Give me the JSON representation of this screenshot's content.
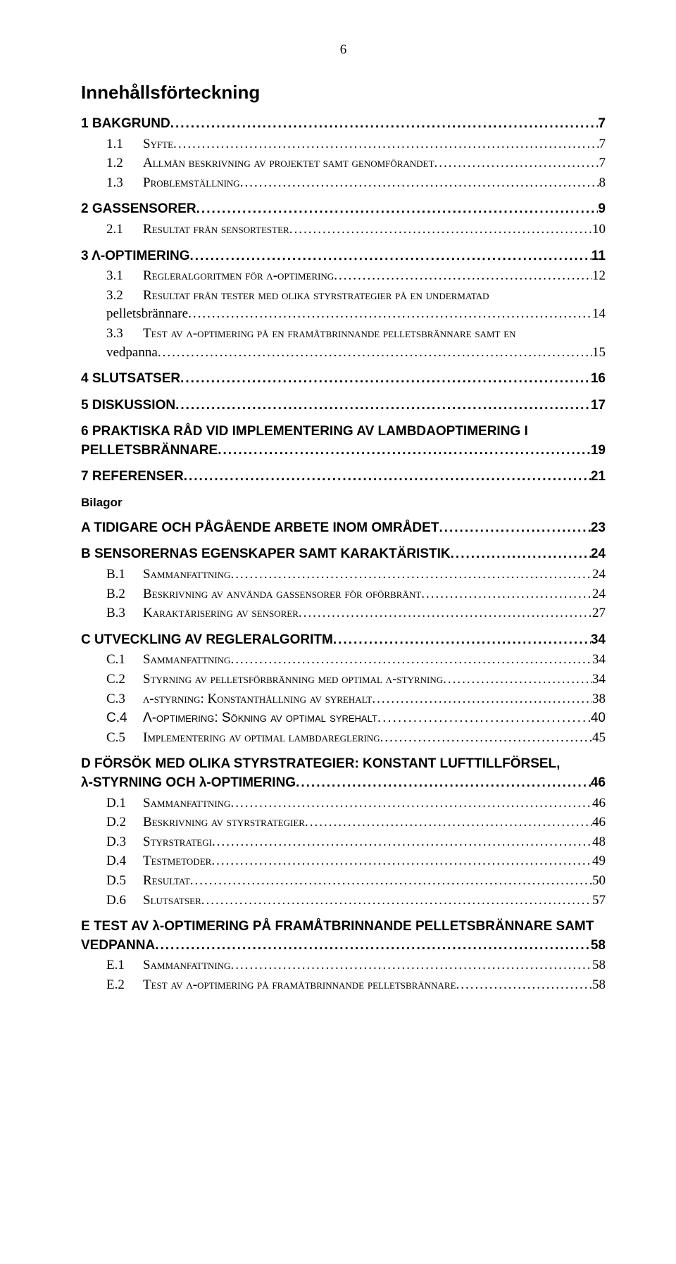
{
  "page_number": "6",
  "title": "Innehållsförteckning",
  "bilagor_label": "Bilagor",
  "items": [
    {
      "level": "h1",
      "label": "1    BAKGRUND",
      "page": "7"
    },
    {
      "level": "h2",
      "num": "1.1",
      "text": "Syfte",
      "page": "7"
    },
    {
      "level": "h2",
      "num": "1.2",
      "text": "Allmän beskrivning av projektet samt genomförandet",
      "page": "7"
    },
    {
      "level": "h2",
      "num": "1.3",
      "text": "Problemställning",
      "page": "8"
    },
    {
      "level": "h1",
      "label": "2    GASSENSORER",
      "page": "9"
    },
    {
      "level": "h2",
      "num": "2.1",
      "text": "Resultat från sensortester",
      "page": "10"
    },
    {
      "level": "h1",
      "label": "3    Λ-OPTIMERING",
      "page": "11"
    },
    {
      "level": "h2",
      "num": "3.1",
      "text": "Regleralgoritmen för λ-optimering",
      "page": "12"
    },
    {
      "level": "h2",
      "num": "3.2",
      "text": "Resultat från tester med olika styrstrategier på en undermatad pelletsbrännare",
      "page": "14"
    },
    {
      "level": "h2",
      "num": "3.3",
      "text": "Test av λ-optimering på en framåtbrinnande pelletsbrännare samt en vedpanna",
      "page": "15"
    },
    {
      "level": "h1",
      "label": "4    SLUTSATSER",
      "page": "16"
    },
    {
      "level": "h1",
      "label": "5    DISKUSSION",
      "page": "17"
    },
    {
      "level": "h1",
      "label": "6    PRAKTISKA RÅD VID IMPLEMENTERING AV LAMBDAOPTIMERING I PELLETSBRÄNNARE",
      "page": "19"
    },
    {
      "level": "h1",
      "label": "7    REFERENSER",
      "page": "21"
    },
    {
      "level": "bilagor"
    },
    {
      "level": "h1",
      "label": "A    TIDIGARE OCH PÅGÅENDE ARBETE INOM OMRÅDET",
      "page": "23"
    },
    {
      "level": "h1",
      "label": "B    SENSORERNAS EGENSKAPER SAMT KARAKTÄRISTIK",
      "page": "24"
    },
    {
      "level": "h2",
      "num": "B.1",
      "text": "Sammanfattning",
      "page": "24"
    },
    {
      "level": "h2",
      "num": "B.2",
      "text": "Beskrivning av använda gassensorer för oförbränt",
      "page": "24"
    },
    {
      "level": "h2",
      "num": "B.3",
      "text": "Karaktärisering av sensorer",
      "page": "27"
    },
    {
      "level": "h1",
      "label": "C    UTVECKLING AV REGLERALGORITM",
      "page": "34"
    },
    {
      "level": "h2",
      "num": "C.1",
      "text": "Sammanfattning",
      "page": "34"
    },
    {
      "level": "h2",
      "num": "C.2",
      "text": "Styrning av pelletsförbränning med optimal λ-styrning",
      "page": "34"
    },
    {
      "level": "h2",
      "num": "C.3",
      "text": "λ-styrning: Konstanthållning av syrehalt",
      "page": "38"
    },
    {
      "level": "h2-sans",
      "num": "C.4",
      "text": "Λ-optimering: Sökning av optimal syrehalt",
      "page": "40"
    },
    {
      "level": "h2",
      "num": "C.5",
      "text": "Implementering av optimal lambdareglering",
      "page": "45"
    },
    {
      "level": "h1",
      "label": "D    FÖRSÖK MED OLIKA STYRSTRATEGIER: KONSTANT LUFTTILLFÖRSEL, λ-STYRNING OCH λ-OPTIMERING",
      "page": "46"
    },
    {
      "level": "h2",
      "num": "D.1",
      "text": "Sammanfattning",
      "page": "46"
    },
    {
      "level": "h2",
      "num": "D.2",
      "text": "Beskrivning av styrstrategier",
      "page": "46"
    },
    {
      "level": "h2",
      "num": "D.3",
      "text": "Styrstrategi",
      "page": "48"
    },
    {
      "level": "h2",
      "num": "D.4",
      "text": "Testmetoder",
      "page": "49"
    },
    {
      "level": "h2",
      "num": "D.5",
      "text": "Resultat",
      "page": "50"
    },
    {
      "level": "h2",
      "num": "D.6",
      "text": "Slutsatser",
      "page": "57"
    },
    {
      "level": "h1",
      "label": "E    TEST AV λ-OPTIMERING PÅ FRAMÅTBRINNANDE PELLETSBRÄNNARE SAMT VEDPANNA",
      "page": "58"
    },
    {
      "level": "h2",
      "num": "E.1",
      "text": "Sammanfattning",
      "page": "58"
    },
    {
      "level": "h2",
      "num": "E.2",
      "text": "Test av λ-optimering på framåtbrinnande pelletsbrännare",
      "page": "58"
    }
  ]
}
